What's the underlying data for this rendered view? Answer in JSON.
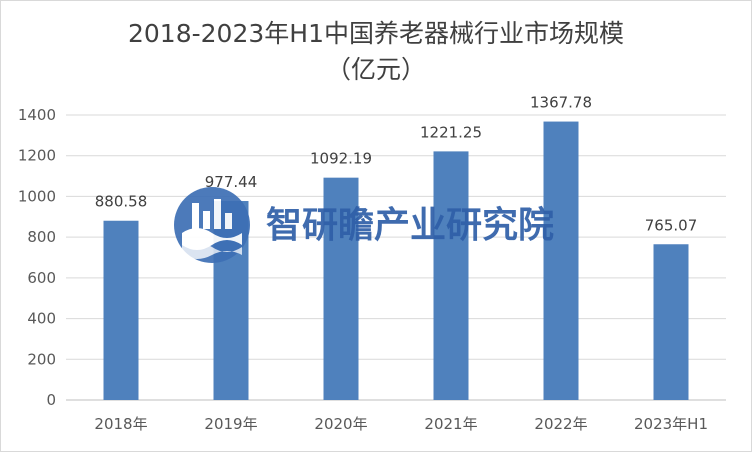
{
  "chart_data": {
    "type": "bar",
    "title_line1": "2018-2023年H1中国养老器械行业市场规模",
    "title_line2": "（亿元）",
    "categories": [
      "2018年",
      "2019年",
      "2020年",
      "2021年",
      "2022年",
      "2023年H1"
    ],
    "values": [
      880.58,
      977.44,
      1092.19,
      1221.25,
      1367.78,
      765.07
    ],
    "data_labels": [
      "880.58",
      "977.44",
      "1092.19",
      "1221.25",
      "1367.78",
      "765.07"
    ],
    "ylim": [
      0,
      1400
    ],
    "yticks": [
      0,
      200,
      400,
      600,
      800,
      1000,
      1200,
      1400
    ],
    "grid": true,
    "legend": "none",
    "bar_color": "#4f81bd"
  },
  "watermark": {
    "text": "智研瞻产业研究院",
    "color": "#2f5fa8"
  }
}
